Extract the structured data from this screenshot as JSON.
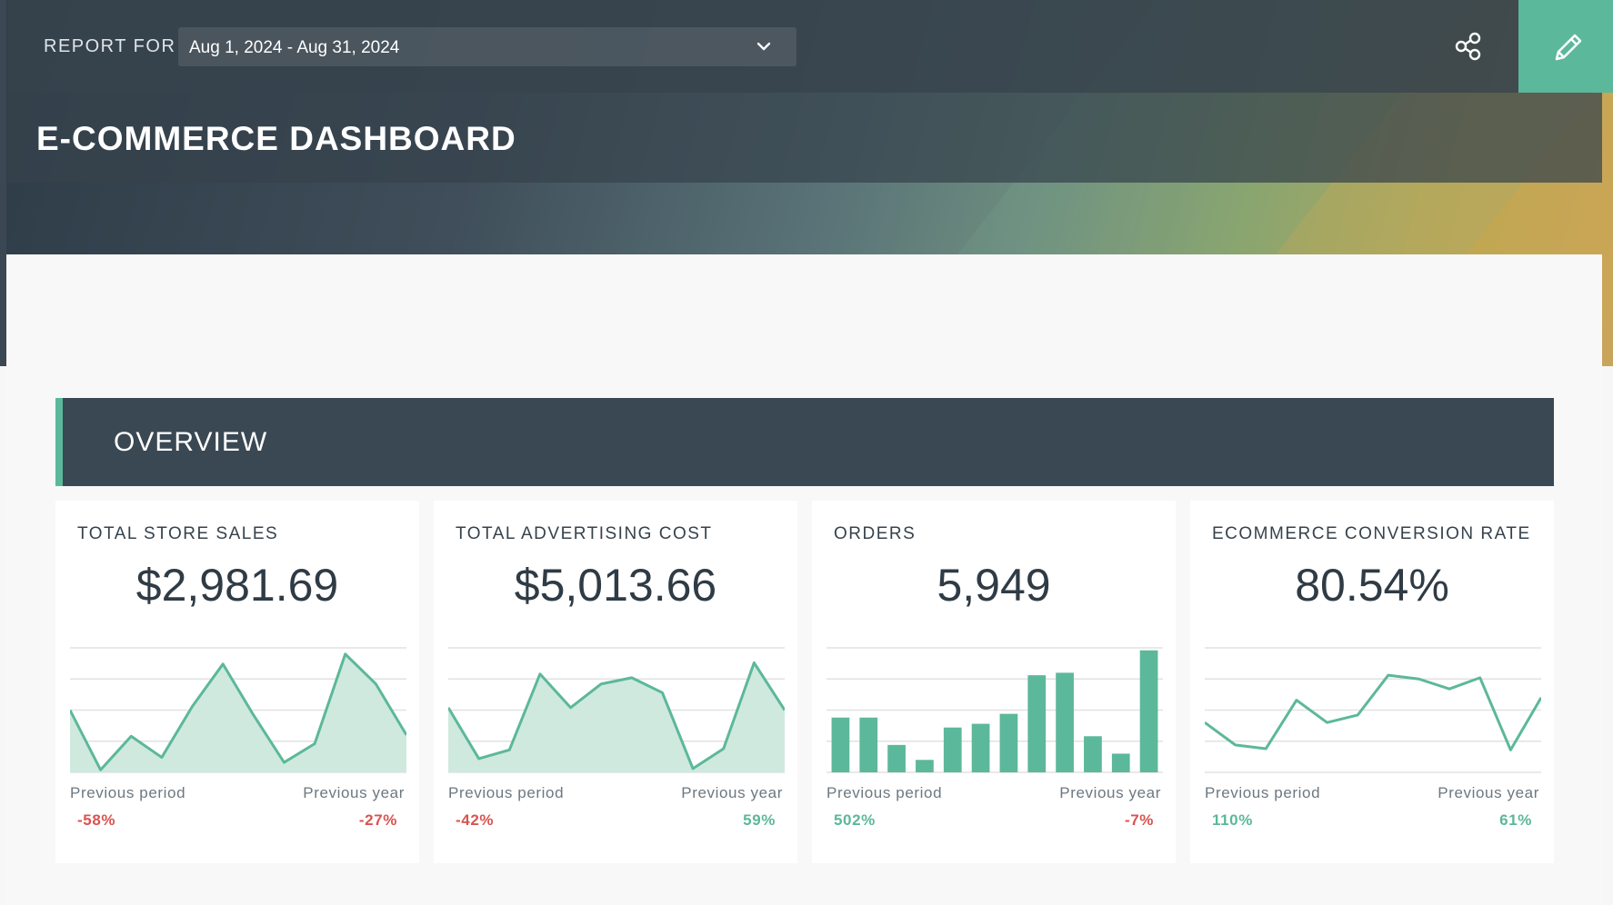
{
  "header": {
    "report_for_label": "REPORT FOR",
    "date_range": "Aug 1, 2024 - Aug 31, 2024",
    "title": "E-COMMERCE DASHBOARD"
  },
  "colors": {
    "accent": "#5cb89a",
    "dark": "#3a4853",
    "negative": "#d9534f",
    "positive": "#5cb89a"
  },
  "section": {
    "title": "OVERVIEW"
  },
  "cards": [
    {
      "title": "TOTAL STORE SALES",
      "value": "$2,981.69",
      "prev_period_label": "Previous period",
      "prev_year_label": "Previous year",
      "prev_period": "-58%",
      "prev_year": "-27%"
    },
    {
      "title": "TOTAL ADVERTISING COST",
      "value": "$5,013.66",
      "prev_period_label": "Previous period",
      "prev_year_label": "Previous year",
      "prev_period": "-42%",
      "prev_year": "59%"
    },
    {
      "title": "ORDERS",
      "value": "5,949",
      "prev_period_label": "Previous period",
      "prev_year_label": "Previous year",
      "prev_period": "502%",
      "prev_year": "-7%"
    },
    {
      "title": "ECOMMERCE CONVERSION RATE",
      "value": "80.54%",
      "prev_period_label": "Previous period",
      "prev_year_label": "Previous year",
      "prev_period": "110%",
      "prev_year": "61%"
    }
  ],
  "chart_data": [
    {
      "type": "area",
      "title": "TOTAL STORE SALES",
      "y": [
        0.5,
        0.02,
        0.29,
        0.12,
        0.53,
        0.87,
        0.46,
        0.08,
        0.23,
        0.95,
        0.71,
        0.3
      ],
      "ylim": [
        0,
        1
      ]
    },
    {
      "type": "area",
      "title": "TOTAL ADVERTISING COST",
      "y": [
        0.52,
        0.11,
        0.18,
        0.79,
        0.52,
        0.71,
        0.76,
        0.64,
        0.03,
        0.19,
        0.88,
        0.5
      ],
      "ylim": [
        0,
        1
      ]
    },
    {
      "type": "bar",
      "title": "ORDERS",
      "y": [
        0.44,
        0.44,
        0.22,
        0.1,
        0.36,
        0.39,
        0.47,
        0.78,
        0.8,
        0.29,
        0.15,
        0.98
      ],
      "ylim": [
        0,
        1
      ]
    },
    {
      "type": "line",
      "title": "ECOMMERCE CONVERSION RATE",
      "y": [
        0.4,
        0.22,
        0.19,
        0.58,
        0.4,
        0.46,
        0.78,
        0.75,
        0.67,
        0.76,
        0.18,
        0.6
      ],
      "ylim": [
        0,
        1
      ]
    }
  ]
}
